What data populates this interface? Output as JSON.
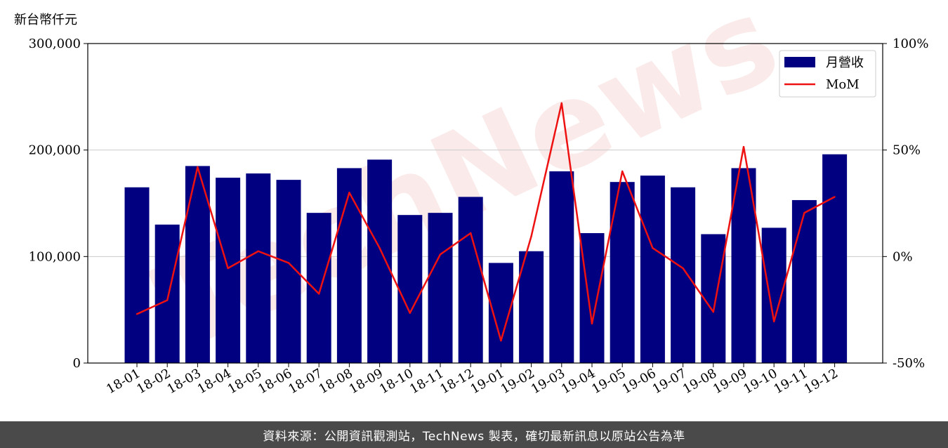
{
  "chart_data": {
    "type": "bar",
    "ylabel": "新台幣仟元",
    "categories": [
      "18-01",
      "18-02",
      "18-03",
      "18-04",
      "18-05",
      "18-06",
      "18-07",
      "18-08",
      "18-09",
      "18-10",
      "18-11",
      "18-12",
      "19-01",
      "19-02",
      "19-03",
      "19-04",
      "19-05",
      "19-06",
      "19-07",
      "19-08",
      "19-09",
      "19-10",
      "19-11",
      "19-12"
    ],
    "series": [
      {
        "name": "月營收",
        "type": "bar",
        "axis": "left",
        "color": "#000080",
        "values": [
          165000,
          130000,
          185000,
          174000,
          178000,
          172000,
          141000,
          183000,
          191000,
          139000,
          141000,
          156000,
          94000,
          105000,
          180000,
          122000,
          170000,
          176000,
          165000,
          121000,
          183000,
          127000,
          153000,
          196000
        ]
      },
      {
        "name": "MoM",
        "type": "line",
        "axis": "right",
        "color": "#ee1111",
        "values": [
          -27,
          -20.5,
          42,
          -5.5,
          2.5,
          -3,
          -17.5,
          30,
          4,
          -26.5,
          1,
          11,
          -39.5,
          9.5,
          72,
          -31.5,
          40,
          4,
          -5.5,
          -26,
          51.5,
          -30.5,
          20.5,
          28
        ]
      }
    ],
    "ylim": [
      0,
      300000
    ],
    "yticks": [
      "0",
      "100,000",
      "200,000",
      "300,000"
    ],
    "y2lim": [
      -50,
      100
    ],
    "y2ticks": [
      "-50%",
      "0%",
      "50%",
      "100%"
    ],
    "grid": "horizontal",
    "legend_position": "top-right",
    "watermark": "TechNews",
    "source": "資料來源：公開資訊觀測站，TechNews 製表，確切最新訊息以原站公告為準"
  }
}
